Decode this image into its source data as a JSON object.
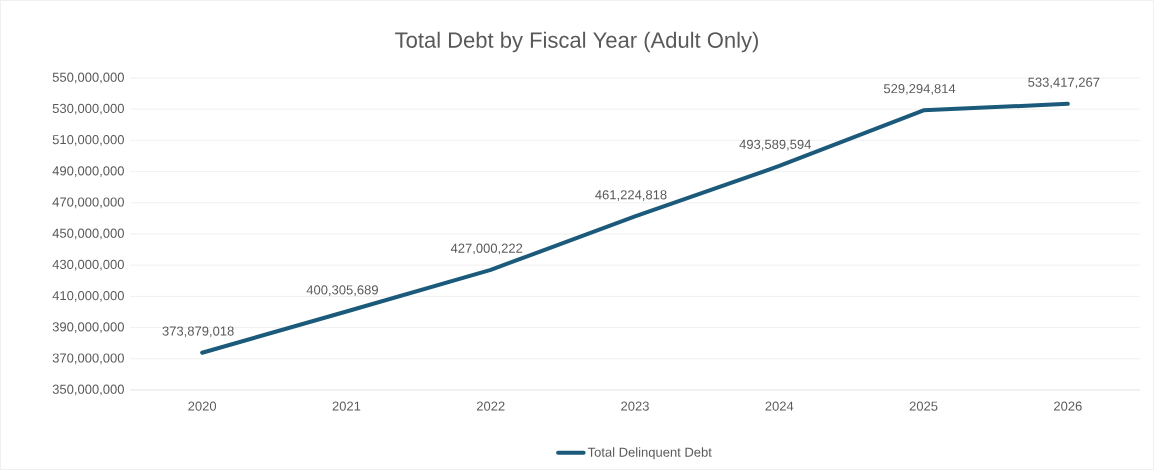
{
  "chart_data": {
    "type": "line",
    "title": "Total Debt by Fiscal Year (Adult Only)",
    "categories": [
      "2020",
      "2021",
      "2022",
      "2023",
      "2024",
      "2025",
      "2026"
    ],
    "series": [
      {
        "name": "Total Delinquent Debt",
        "color": "#1b5a7a",
        "values": [
          373879018,
          400305689,
          427000222,
          461224818,
          493589594,
          529294814,
          533417267
        ],
        "value_labels": [
          "373,879,018",
          "400,305,689",
          "427,000,222",
          "461,224,818",
          "493,589,594",
          "529,294,814",
          "533,417,267"
        ]
      }
    ],
    "ylim": [
      350000000,
      550000000
    ],
    "yticks": [
      {
        "value": 350000000,
        "label": "350,000,000"
      },
      {
        "value": 370000000,
        "label": "370,000,000"
      },
      {
        "value": 390000000,
        "label": "390,000,000"
      },
      {
        "value": 410000000,
        "label": "410,000,000"
      },
      {
        "value": 430000000,
        "label": "430,000,000"
      },
      {
        "value": 450000000,
        "label": "450,000,000"
      },
      {
        "value": 470000000,
        "label": "470,000,000"
      },
      {
        "value": 490000000,
        "label": "490,000,000"
      },
      {
        "value": 510000000,
        "label": "510,000,000"
      },
      {
        "value": 530000000,
        "label": "530,000,000"
      },
      {
        "value": 550000000,
        "label": "550,000,000"
      }
    ],
    "grid": "y",
    "legend": "bottom",
    "marker": "none",
    "line_style": "solid"
  }
}
